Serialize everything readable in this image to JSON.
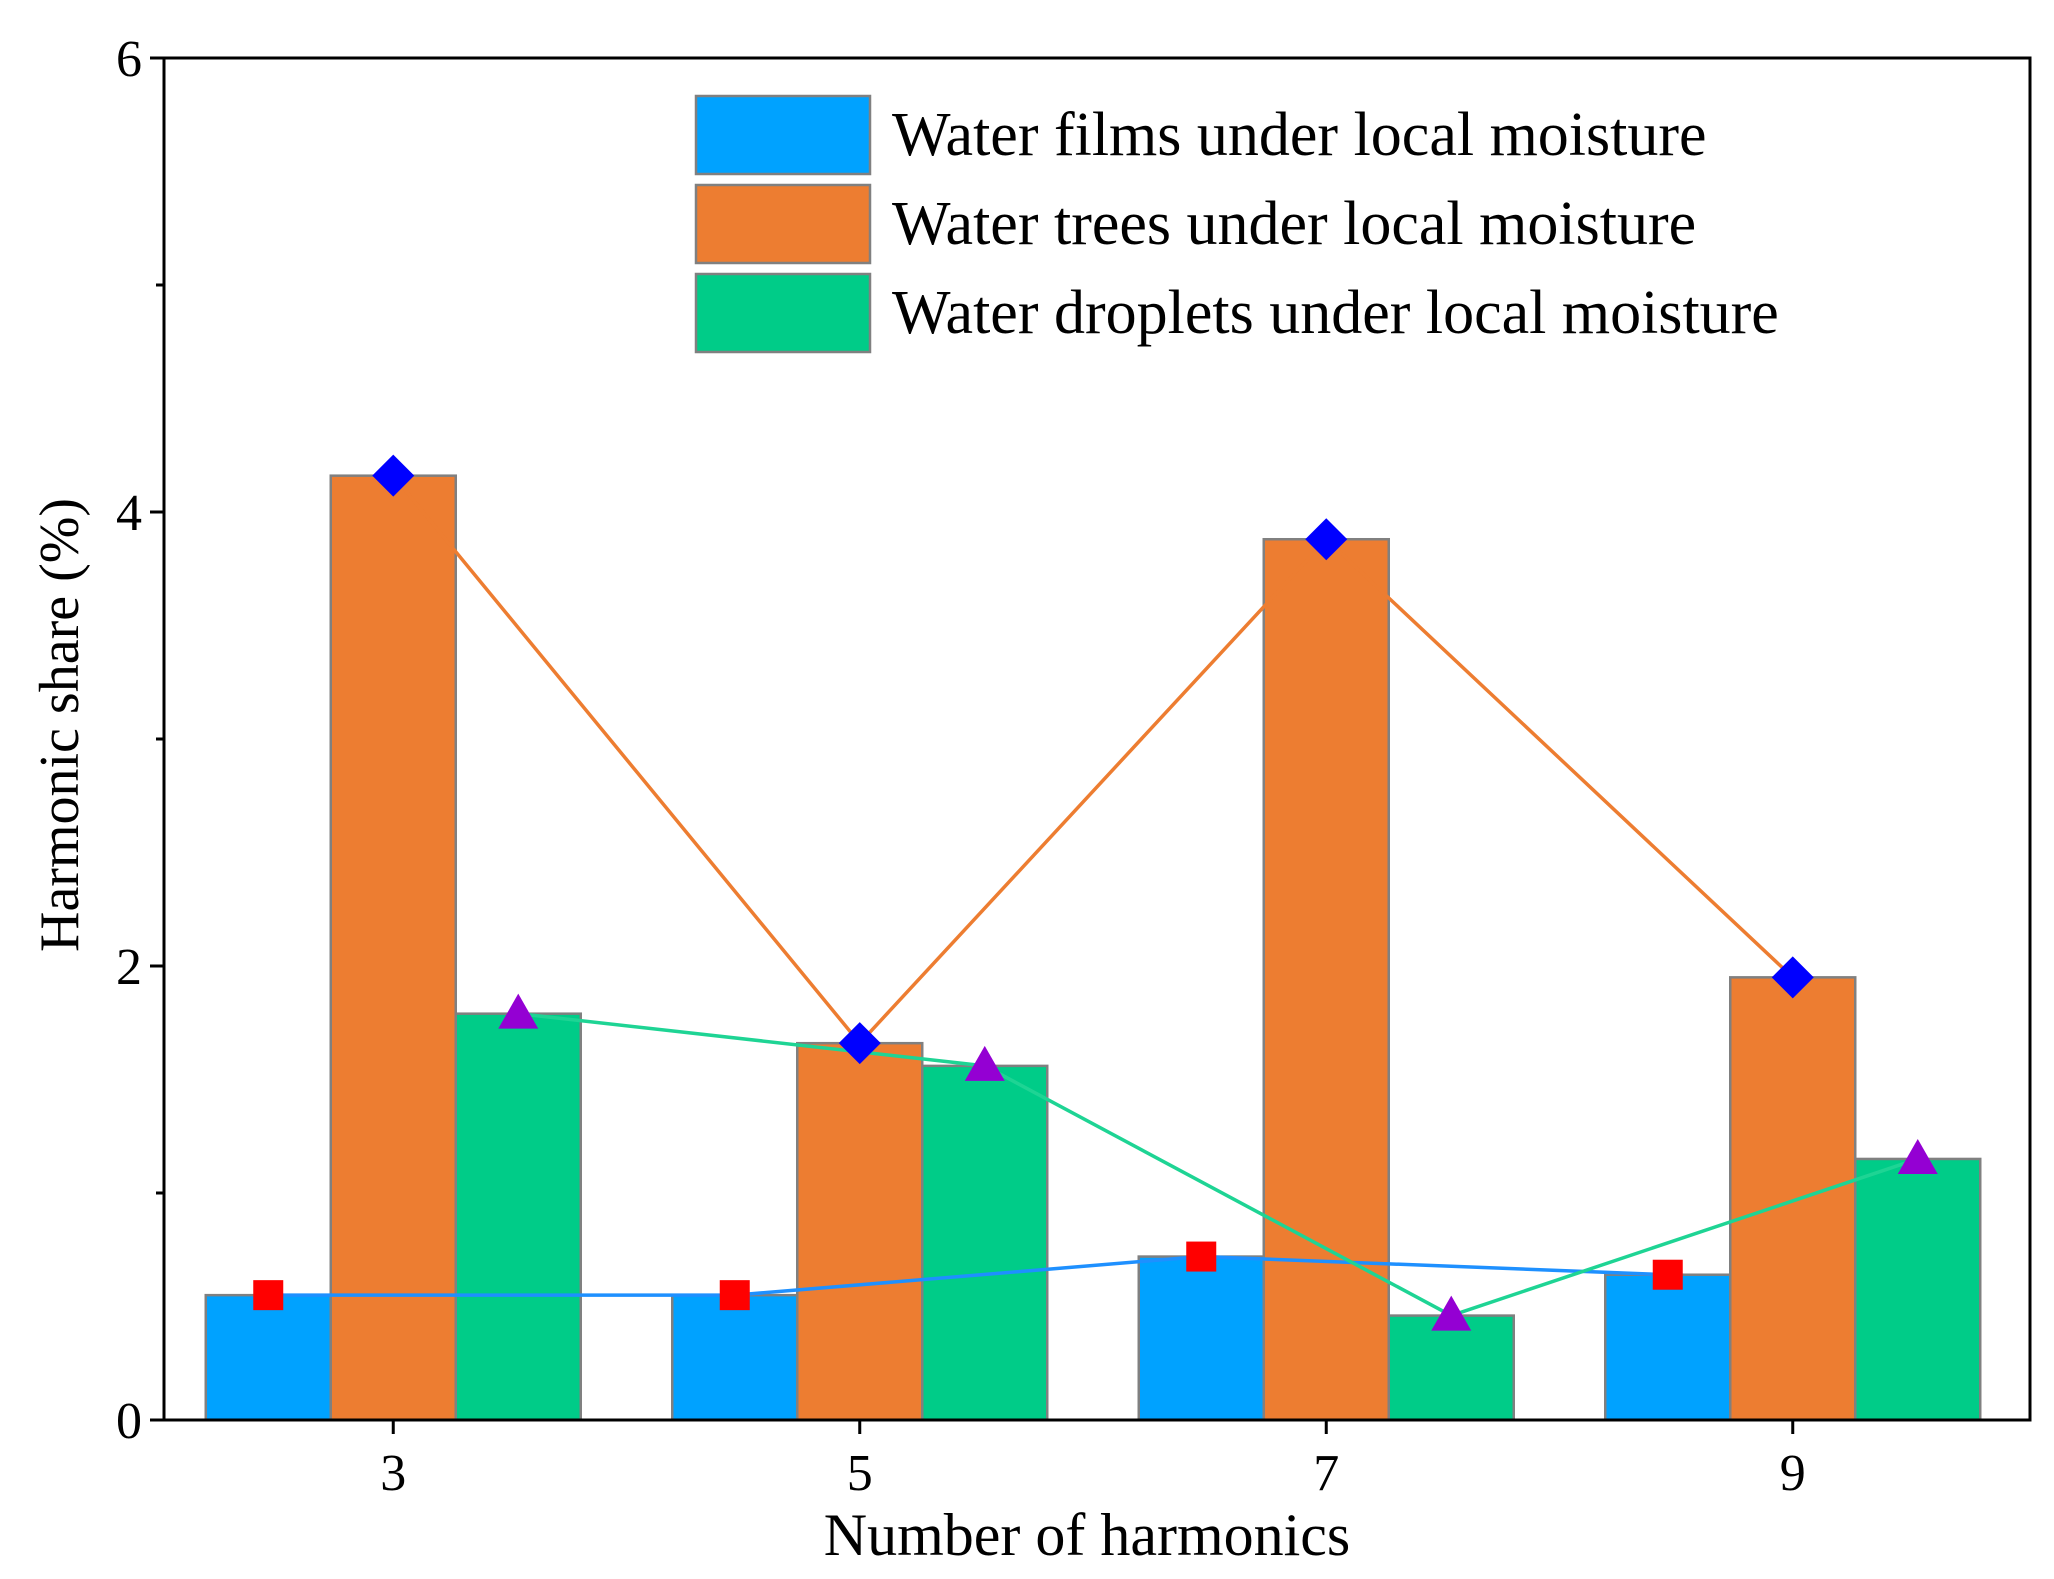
{
  "chart_data": {
    "type": "bar",
    "title": "",
    "xlabel": "Number of harmonics",
    "ylabel": "Harmonic share (%)",
    "categories": [
      "3",
      "5",
      "7",
      "9"
    ],
    "ylim": [
      0,
      6
    ],
    "yticks": [
      "0",
      "2",
      "4",
      "6"
    ],
    "legend_position": "top-right",
    "series": [
      {
        "name": "Water films under local moisture",
        "values": [
          0.55,
          0.55,
          0.72,
          0.64
        ],
        "color": "#00A2FF",
        "line_color": "#1E90FF",
        "marker": "square",
        "marker_color": "#FF0000"
      },
      {
        "name": "Water trees under local moisture",
        "values": [
          4.16,
          1.66,
          3.88,
          1.95
        ],
        "color": "#ED7D31",
        "line_color": "#ED7D31",
        "marker": "diamond",
        "marker_color": "#0000FF"
      },
      {
        "name": "Water droplets under local moisture",
        "values": [
          1.79,
          1.56,
          0.46,
          1.15
        ],
        "color": "#00CC88",
        "line_color": "#1ED494",
        "marker": "triangle",
        "marker_color": "#9400D3"
      }
    ],
    "bar_edge_color": "#808080"
  }
}
